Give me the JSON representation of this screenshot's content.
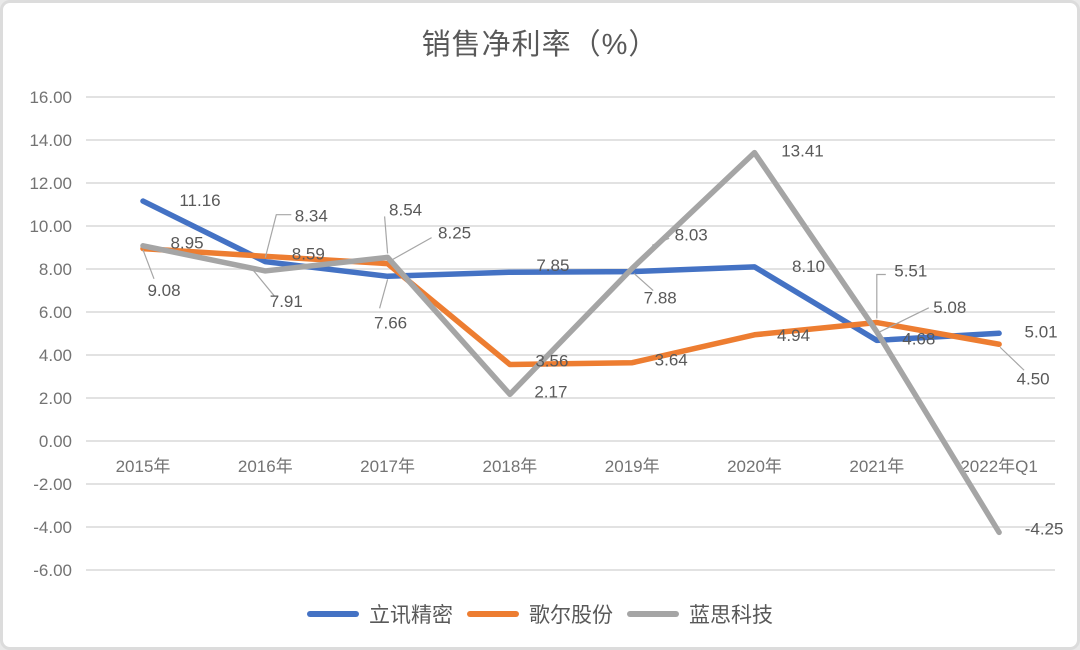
{
  "chart_data": {
    "type": "line",
    "title": "销售净利率（%）",
    "categories": [
      "2015年",
      "2016年",
      "2017年",
      "2018年",
      "2019年",
      "2020年",
      "2021年",
      "2022年Q1"
    ],
    "series": [
      {
        "name": "立讯精密",
        "color": "#4472C4",
        "values": [
          11.16,
          8.34,
          7.66,
          7.85,
          7.88,
          8.1,
          4.68,
          5.01
        ],
        "label_hints": [
          {
            "dx": 57,
            "dy": -1
          },
          {
            "dx": 46,
            "dy": -46,
            "leader": [
              [
                0,
                -4
              ],
              [
                11,
                -47
              ],
              [
                26,
                -47
              ]
            ]
          },
          {
            "dx": 3,
            "dy": 46,
            "leader": [
              [
                0,
                3
              ],
              [
                -8,
                32
              ]
            ]
          },
          {
            "dx": 43,
            "dy": -7
          },
          {
            "dx": 28,
            "dy": 26,
            "leader": [
              [
                2,
                2
              ],
              [
                21,
                19
              ]
            ]
          },
          {
            "dx": 54,
            "dy": -1
          },
          {
            "dx": 42,
            "dy": -2
          },
          {
            "dx": 42,
            "dy": -2
          }
        ]
      },
      {
        "name": "歌尔股份",
        "color": "#ED7D31",
        "values": [
          8.95,
          8.59,
          8.25,
          3.56,
          3.64,
          4.94,
          5.51,
          4.5
        ],
        "label_hints": [
          {
            "dx": 44,
            "dy": -6
          },
          {
            "dx": 43,
            "dy": -3
          },
          {
            "dx": 67,
            "dy": -31,
            "leader": [
              [
                3,
                -3
              ],
              [
                44,
                -26
              ]
            ]
          },
          {
            "dx": 42,
            "dy": -4
          },
          {
            "dx": 39,
            "dy": -3
          },
          {
            "dx": 39,
            "dy": 0
          },
          {
            "dx": 34,
            "dy": -52,
            "leader": [
              [
                0,
                -4
              ],
              [
                0,
                -48
              ],
              [
                9,
                -48
              ]
            ]
          },
          {
            "dx": 34,
            "dy": 34,
            "leader": [
              [
                1,
                3
              ],
              [
                25,
                26
              ]
            ]
          }
        ]
      },
      {
        "name": "蓝思科技",
        "color": "#A5A5A5",
        "values": [
          9.08,
          7.91,
          8.54,
          2.17,
          8.03,
          13.41,
          5.08,
          -4.25
        ],
        "label_hints": [
          {
            "dx": 21,
            "dy": 44,
            "leader": [
              [
                0,
                4
              ],
              [
                11,
                33
              ]
            ]
          },
          {
            "dx": 21,
            "dy": 30,
            "leader": [
              [
                -14,
                -3
              ],
              [
                9,
                25
              ]
            ]
          },
          {
            "dx": 18,
            "dy": -48,
            "leader": [
              [
                0,
                -4
              ],
              [
                -3,
                -41
              ]
            ]
          },
          {
            "dx": 41,
            "dy": -3
          },
          {
            "dx": 59,
            "dy": -34,
            "leader": [
              [
                20,
                -23
              ],
              [
                37,
                -30
              ]
            ]
          },
          {
            "dx": 48,
            "dy": -2
          },
          {
            "dx": 73,
            "dy": -25,
            "leader": [
              [
                3,
                0
              ],
              [
                52,
                -24
              ]
            ]
          },
          {
            "dx": 45,
            "dy": -4
          }
        ]
      }
    ],
    "y_axis": {
      "min": -6,
      "max": 16,
      "step": 2,
      "tick_labels": [
        "16.00",
        "14.00",
        "12.00",
        "10.00",
        "8.00",
        "6.00",
        "4.00",
        "2.00",
        "0.00",
        "-2.00",
        "-4.00",
        "-6.00"
      ]
    },
    "value_format": "2dp",
    "grid": "horizontal",
    "legend_position": "bottom",
    "colors": {
      "grid": "#D9D9D9",
      "tick_text": "#737373",
      "data_label_text": "#595959",
      "leader_line": "#A6A6A6",
      "title_text": "#595959"
    }
  }
}
